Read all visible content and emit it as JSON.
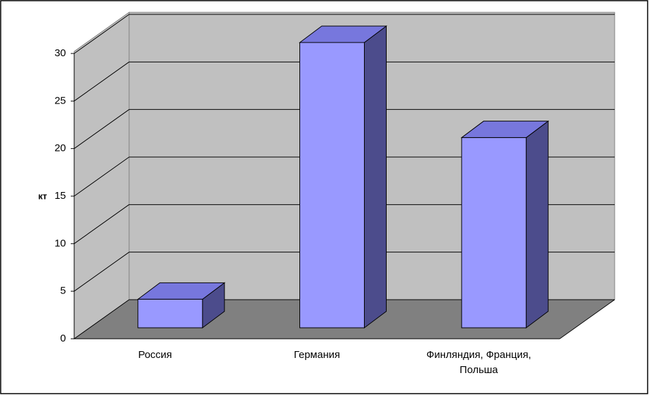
{
  "chart_data": {
    "type": "bar",
    "y_label": "кт",
    "categories": [
      "Россия",
      "Германия",
      "Финляндия, Франция, Польша"
    ],
    "values": [
      3,
      30,
      20
    ],
    "color": "#9999ff",
    "ylim": [
      0,
      30
    ],
    "yticks": [
      0,
      5,
      10,
      15,
      20,
      25,
      30
    ],
    "grid": true
  }
}
